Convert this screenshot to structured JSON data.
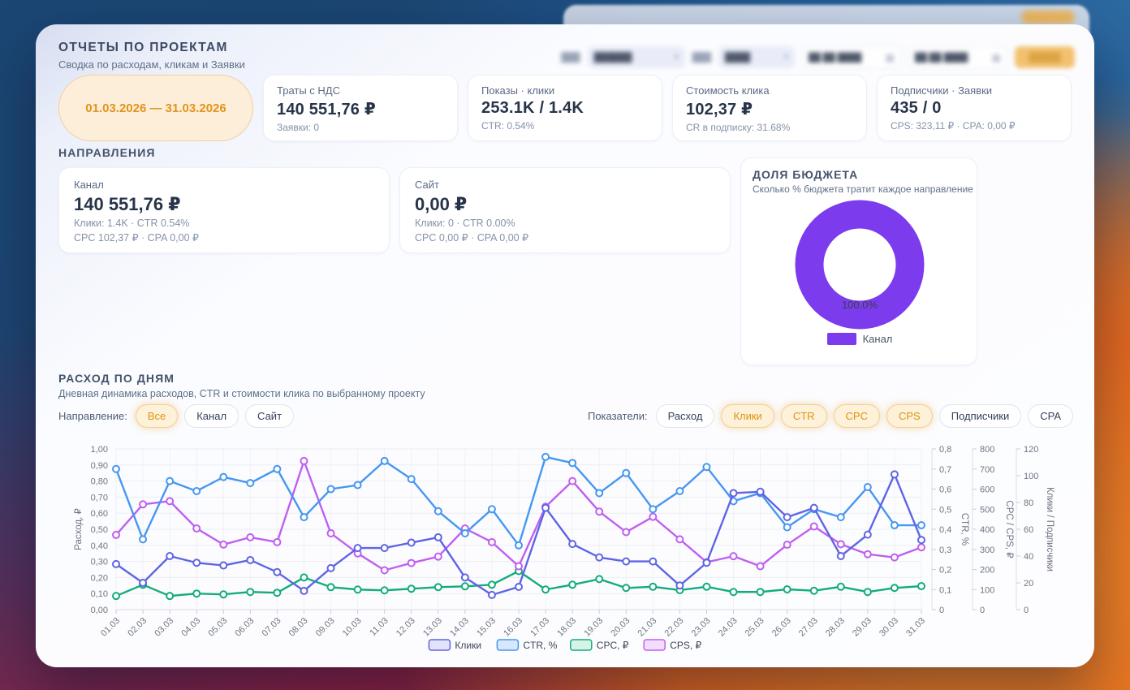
{
  "header": {
    "title": "ОТЧЕТЫ ПО ПРОЕКТАМ",
    "subtitle": "Сводка по расходам, кликам и Заявки"
  },
  "toolbar": {
    "blurred": true,
    "project_label": "███",
    "project_select": "██████",
    "period_label": "███",
    "period_select": "████",
    "date_from": "██.██.████",
    "date_to": "██.██.████",
    "apply_button": "█████",
    "calendar_icon": "▦",
    "chevron_icon": "▾"
  },
  "summary": {
    "date_range": "01.03.2026 — 31.03.2026",
    "cards": [
      {
        "title": "Траты с НДС",
        "value": "140 551,76 ₽",
        "sub": "Заявки: 0"
      },
      {
        "title": "Показы · клики",
        "value": "253.1K / 1.4K",
        "sub": "CTR: 0.54%"
      },
      {
        "title": "Стоимость клика",
        "value": "102,37 ₽",
        "sub": "CR в подписку: 31.68%"
      },
      {
        "title": "Подписчики · Заявки",
        "value": "435 / 0",
        "sub": "CPS: 323,11 ₽ · CPA: 0,00 ₽"
      }
    ]
  },
  "directions_section": {
    "title": "НАПРАВЛЕНИЯ",
    "cards": [
      {
        "title": "Канал",
        "value": "140 551,76 ₽",
        "line1": "Клики: 1.4K · CTR 0.54%",
        "line2": "CPC 102,37 ₽ · CPA 0,00 ₽"
      },
      {
        "title": "Сайт",
        "value": "0,00 ₽",
        "line1": "Клики: 0 · CTR 0.00%",
        "line2": "CPC 0,00 ₽ · CPA 0,00 ₽"
      }
    ]
  },
  "filters": {
    "direction_label": "Направление:",
    "directions": [
      {
        "label": "Все",
        "active": true
      },
      {
        "label": "Канал",
        "active": false
      },
      {
        "label": "Сайт",
        "active": false
      }
    ],
    "metrics_label": "Показатели:",
    "metrics": [
      {
        "label": "Расход",
        "active": false
      },
      {
        "label": "Клики",
        "active": true
      },
      {
        "label": "CTR",
        "active": true
      },
      {
        "label": "CPC",
        "active": true
      },
      {
        "label": "CPS",
        "active": true
      },
      {
        "label": "Подписчики",
        "active": false
      },
      {
        "label": "CPA",
        "active": false
      }
    ]
  },
  "colors": {
    "accent_orange": "#e2941c",
    "donut_purple": "#7c3bec",
    "series_kliki": "#6064e4",
    "series_ctr": "#4597f1",
    "series_cpc": "#13ac7c",
    "series_cps": "#c05ff0"
  },
  "chart_data": [
    {
      "type": "pie",
      "title": "ДОЛЯ БЮДЖЕТА",
      "subtitle": "Сколько % бюджета тратит каждое направление",
      "labels": [
        "Канал"
      ],
      "values": [
        100.0
      ],
      "unit": "%",
      "center_label": "100.0%",
      "color": "#7c3bec",
      "legend_position": "bottom"
    },
    {
      "type": "line",
      "title": "РАСХОД ПО ДНЯМ",
      "subtitle": "Дневная динамика расходов, CTR и стоимости клика по выбранному проекту",
      "x": [
        "01.03",
        "02.03",
        "03.03",
        "04.03",
        "05.03",
        "06.03",
        "07.03",
        "08.03",
        "09.03",
        "10.03",
        "11.03",
        "12.03",
        "13.03",
        "14.03",
        "15.03",
        "16.03",
        "17.03",
        "18.03",
        "19.03",
        "20.03",
        "21.03",
        "22.03",
        "23.03",
        "24.03",
        "25.03",
        "26.03",
        "27.03",
        "28.03",
        "29.03",
        "30.03",
        "31.03"
      ],
      "left_axis": {
        "label": "Расход, ₽",
        "min": 0,
        "max": 1,
        "ticks": [
          "1,00",
          "0,90",
          "0,80",
          "0,70",
          "0,60",
          "0,50",
          "0,40",
          "0,30",
          "0,20",
          "0,10",
          "0,00"
        ]
      },
      "right_axes": [
        {
          "label": "CTR, %",
          "min": 0,
          "max": 0.8,
          "ticks": [
            "0,8",
            "0,7",
            "0,6",
            "0,5",
            "0,4",
            "0,3",
            "0,2",
            "0,1",
            "0"
          ]
        },
        {
          "label": "CPC / CPS, ₽",
          "min": 0,
          "max": 800,
          "ticks": [
            "800",
            "700",
            "600",
            "500",
            "400",
            "300",
            "200",
            "100",
            "0"
          ]
        },
        {
          "label": "Клики / Подписчики",
          "min": 0,
          "max": 120,
          "ticks": [
            "120",
            "100",
            "80",
            "60",
            "40",
            "20",
            "0"
          ]
        }
      ],
      "grid": true,
      "legend_position": "bottom",
      "series": [
        {
          "name": "Клики",
          "color": "#6064e4",
          "fill": "#e2e2fb",
          "axis_max": 120,
          "values": [
            34,
            20,
            40,
            35,
            33,
            37,
            28,
            14,
            31,
            46,
            46,
            50,
            54,
            24,
            11,
            17,
            76,
            49,
            39,
            36,
            36,
            18,
            35,
            87,
            88,
            69,
            76,
            40,
            56,
            101,
            52
          ]
        },
        {
          "name": "CTR, %",
          "color": "#4597f1",
          "fill": "#d7e8fd",
          "axis_max": 0.8,
          "values": [
            0.7,
            0.35,
            0.64,
            0.59,
            0.66,
            0.63,
            0.7,
            0.46,
            0.6,
            0.62,
            0.74,
            0.65,
            0.49,
            0.38,
            0.5,
            0.32,
            0.76,
            0.73,
            0.58,
            0.68,
            0.5,
            0.59,
            0.71,
            0.54,
            0.58,
            0.41,
            0.5,
            0.46,
            0.61,
            0.42,
            0.42
          ]
        },
        {
          "name": "CPC, ₽",
          "color": "#13ac7c",
          "fill": "#d7f3e8",
          "axis_max": 800,
          "values": [
            68,
            124,
            68,
            80,
            76,
            88,
            84,
            160,
            112,
            100,
            96,
            104,
            112,
            116,
            124,
            192,
            100,
            124,
            152,
            108,
            114,
            97,
            114,
            88,
            88,
            101,
            94,
            114,
            88,
            108,
            117
          ]
        },
        {
          "name": "CPS, ₽",
          "color": "#c05ff0",
          "fill": "#f3ddfc",
          "axis_max": 800,
          "values": [
            372,
            524,
            540,
            404,
            324,
            360,
            336,
            740,
            380,
            280,
            196,
            232,
            264,
            404,
            336,
            216,
            512,
            640,
            488,
            386,
            462,
            350,
            236,
            266,
            216,
            323,
            414,
            326,
            276,
            260,
            310
          ]
        }
      ]
    }
  ]
}
